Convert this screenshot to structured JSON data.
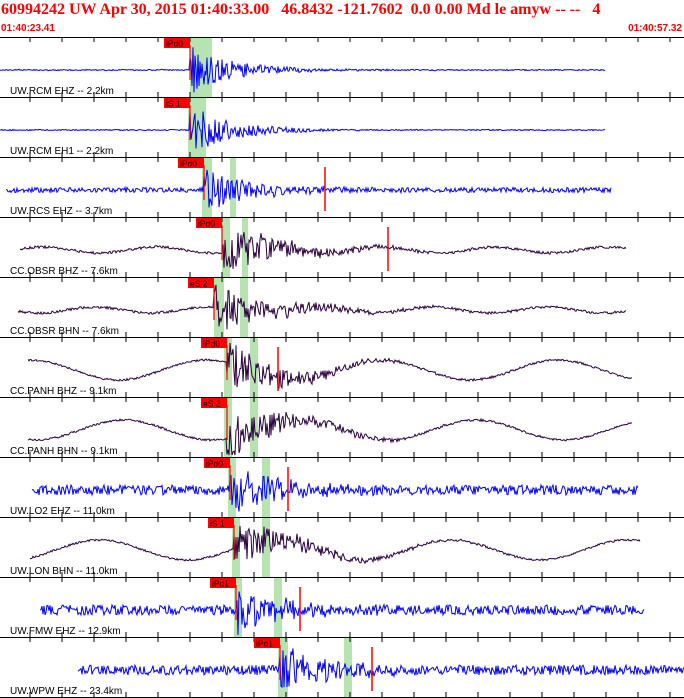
{
  "header": {
    "title": "60994242 UW Apr 30, 2015 01:40:33.00   46.8432 -121.7602  0.0 0.00 Md le amyw -- --   4",
    "time_start": "01:40:23.41",
    "time_end": "01:40:57.32"
  },
  "colors": {
    "header_text": "#ff0000",
    "trace_blue": "#0000ff",
    "trace_dark": "#2a0040",
    "pick_box": "#ff0000",
    "pick_window": "#b6e3b0"
  },
  "traces": [
    {
      "label": "UW.RCM EHZ -- 2.2km",
      "pick": "iPd0",
      "color": "blue",
      "style": "hf"
    },
    {
      "label": "UW.RCM EH1 -- 2.2km",
      "pick": "iS 1",
      "color": "blue",
      "style": "hf"
    },
    {
      "label": "UW.RCS EHZ -- 3.7km",
      "pick": "iPd0",
      "color": "blue",
      "style": "hf"
    },
    {
      "label": "CC.OBSR BHZ -- 7.6km",
      "pick": "iPd0",
      "color": "dark",
      "style": "lf"
    },
    {
      "label": "CC.OBSR BHN -- 7.6km",
      "pick": "eS 2",
      "color": "dark",
      "style": "lf"
    },
    {
      "label": "CC.PANH BHZ -- 9.1km",
      "pick": "iPd0",
      "color": "dark",
      "style": "wave"
    },
    {
      "label": "CC.PANH BHN -- 9.1km",
      "pick": "eS 2",
      "color": "dark",
      "style": "wave"
    },
    {
      "label": "UW.LO2 EHZ -- 11.0km",
      "pick": "iPd0",
      "color": "blue",
      "style": "hf"
    },
    {
      "label": "UW.LON BHN -- 11.0km",
      "pick": "iS 1",
      "color": "dark",
      "style": "wave"
    },
    {
      "label": "UW.FMW EHZ -- 12.9km",
      "pick": "iPd1",
      "color": "blue",
      "style": "hf"
    },
    {
      "label": "UW.WPW EHZ -- 23.4km",
      "pick": "iPd1",
      "color": "blue",
      "style": "hf"
    }
  ]
}
